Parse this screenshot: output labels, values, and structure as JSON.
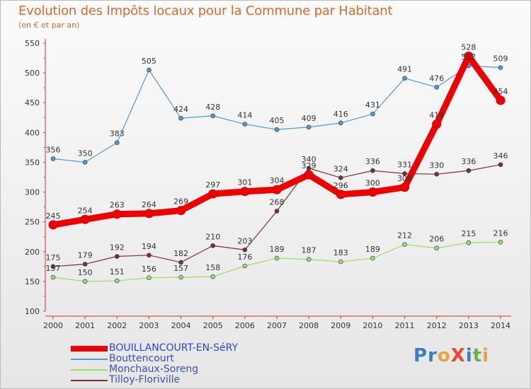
{
  "header": {
    "title": "Evolution des Impôts locaux pour la Commune par Habitant",
    "subtitle": "(en € et par an)"
  },
  "logo": {
    "text": "ProXiti",
    "letters": [
      "P",
      "r",
      "o",
      "X",
      "i",
      "t",
      "i"
    ],
    "colors": [
      "#3a7ebf",
      "#3a7ebf",
      "#e8a33a",
      "#e84a2a",
      "#3a7ebf",
      "#6ab04c",
      "#e8a33a"
    ]
  },
  "chart_data": {
    "type": "line",
    "categories": [
      "2000",
      "2001",
      "2002",
      "2003",
      "2004",
      "2005",
      "2006",
      "2007",
      "2008",
      "2009",
      "2010",
      "2011",
      "2012",
      "2013",
      "2014"
    ],
    "ylim": [
      100,
      550
    ],
    "yticks": [
      "100",
      "150",
      "200",
      "250",
      "300",
      "350",
      "400",
      "450",
      "500",
      "550"
    ],
    "grid": false,
    "legend_position": "bottom-left",
    "series": [
      {
        "name": "BOUILLANCOURT-EN-SéRY",
        "color": "#ee0000",
        "width": 9,
        "values": [
          245,
          254,
          263,
          264,
          269,
          297,
          301,
          304,
          329,
          296,
          300,
          308,
          414,
          528,
          454
        ],
        "labels": [
          "245",
          "254",
          "263",
          "264",
          "269",
          "297",
          "301",
          "304",
          "329",
          "296",
          "300",
          "308",
          "414",
          "528",
          "454"
        ]
      },
      {
        "name": "Bouttencourt",
        "color": "#5599cc",
        "width": 1.2,
        "values": [
          356,
          350,
          383,
          505,
          424,
          428,
          414,
          405,
          409,
          416,
          431,
          491,
          476,
          512,
          509
        ],
        "labels": [
          "356",
          "350",
          "383",
          "505",
          "424",
          "428",
          "414",
          "405",
          "409",
          "416",
          "431",
          "491",
          "476",
          "512",
          "509"
        ]
      },
      {
        "name": "Monchaux-Soreng",
        "color": "#99dd66",
        "width": 1.2,
        "values": [
          157,
          150,
          151,
          156,
          157,
          158,
          176,
          189,
          187,
          183,
          189,
          212,
          206,
          215,
          216
        ],
        "labels": [
          "157",
          "150",
          "151",
          "156",
          "157",
          "158",
          "176",
          "189",
          "187",
          "183",
          "189",
          "212",
          "206",
          "215",
          "216"
        ]
      },
      {
        "name": "Tilloy-Floriville",
        "color": "#773333",
        "width": 1.2,
        "values": [
          175,
          179,
          192,
          194,
          182,
          210,
          203,
          268,
          340,
          324,
          336,
          331,
          330,
          336,
          346
        ],
        "labels": [
          "175",
          "179",
          "192",
          "194",
          "182",
          "210",
          "203",
          "268",
          "340",
          "324",
          "336",
          "331",
          "330",
          "336",
          "346"
        ]
      }
    ]
  }
}
